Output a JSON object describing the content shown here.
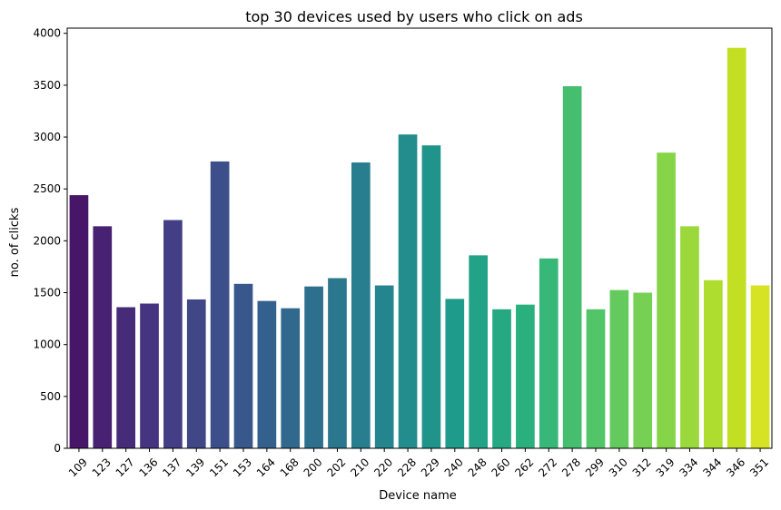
{
  "chart_data": {
    "type": "bar",
    "title": "top 30 devices used by users who click on ads",
    "xlabel": "Device name",
    "ylabel": "no. of clicks",
    "categories": [
      "109",
      "123",
      "127",
      "136",
      "137",
      "139",
      "151",
      "153",
      "164",
      "168",
      "200",
      "202",
      "210",
      "220",
      "228",
      "229",
      "240",
      "248",
      "260",
      "262",
      "272",
      "278",
      "299",
      "310",
      "312",
      "319",
      "334",
      "344",
      "346",
      "351"
    ],
    "values": [
      2440,
      2140,
      1360,
      1395,
      2200,
      1435,
      2765,
      1585,
      1420,
      1350,
      1560,
      1640,
      2755,
      1570,
      3025,
      2920,
      1440,
      1860,
      1340,
      1385,
      1830,
      3490,
      1340,
      1525,
      1500,
      2850,
      2140,
      1620,
      3860,
      1570
    ],
    "ylim": [
      0,
      4050
    ],
    "yticks": [
      0,
      500,
      1000,
      1500,
      2000,
      2500,
      3000,
      3500,
      4000
    ],
    "grid": false,
    "palette": "viridis",
    "colors": [
      "#440154",
      "#482173",
      "#433e85",
      "#38588c",
      "#2d708e",
      "#25858e",
      "#1e9b8a",
      "#2ab07f",
      "#52c569",
      "#86d549",
      "#c2df23",
      "#fde725"
    ]
  }
}
